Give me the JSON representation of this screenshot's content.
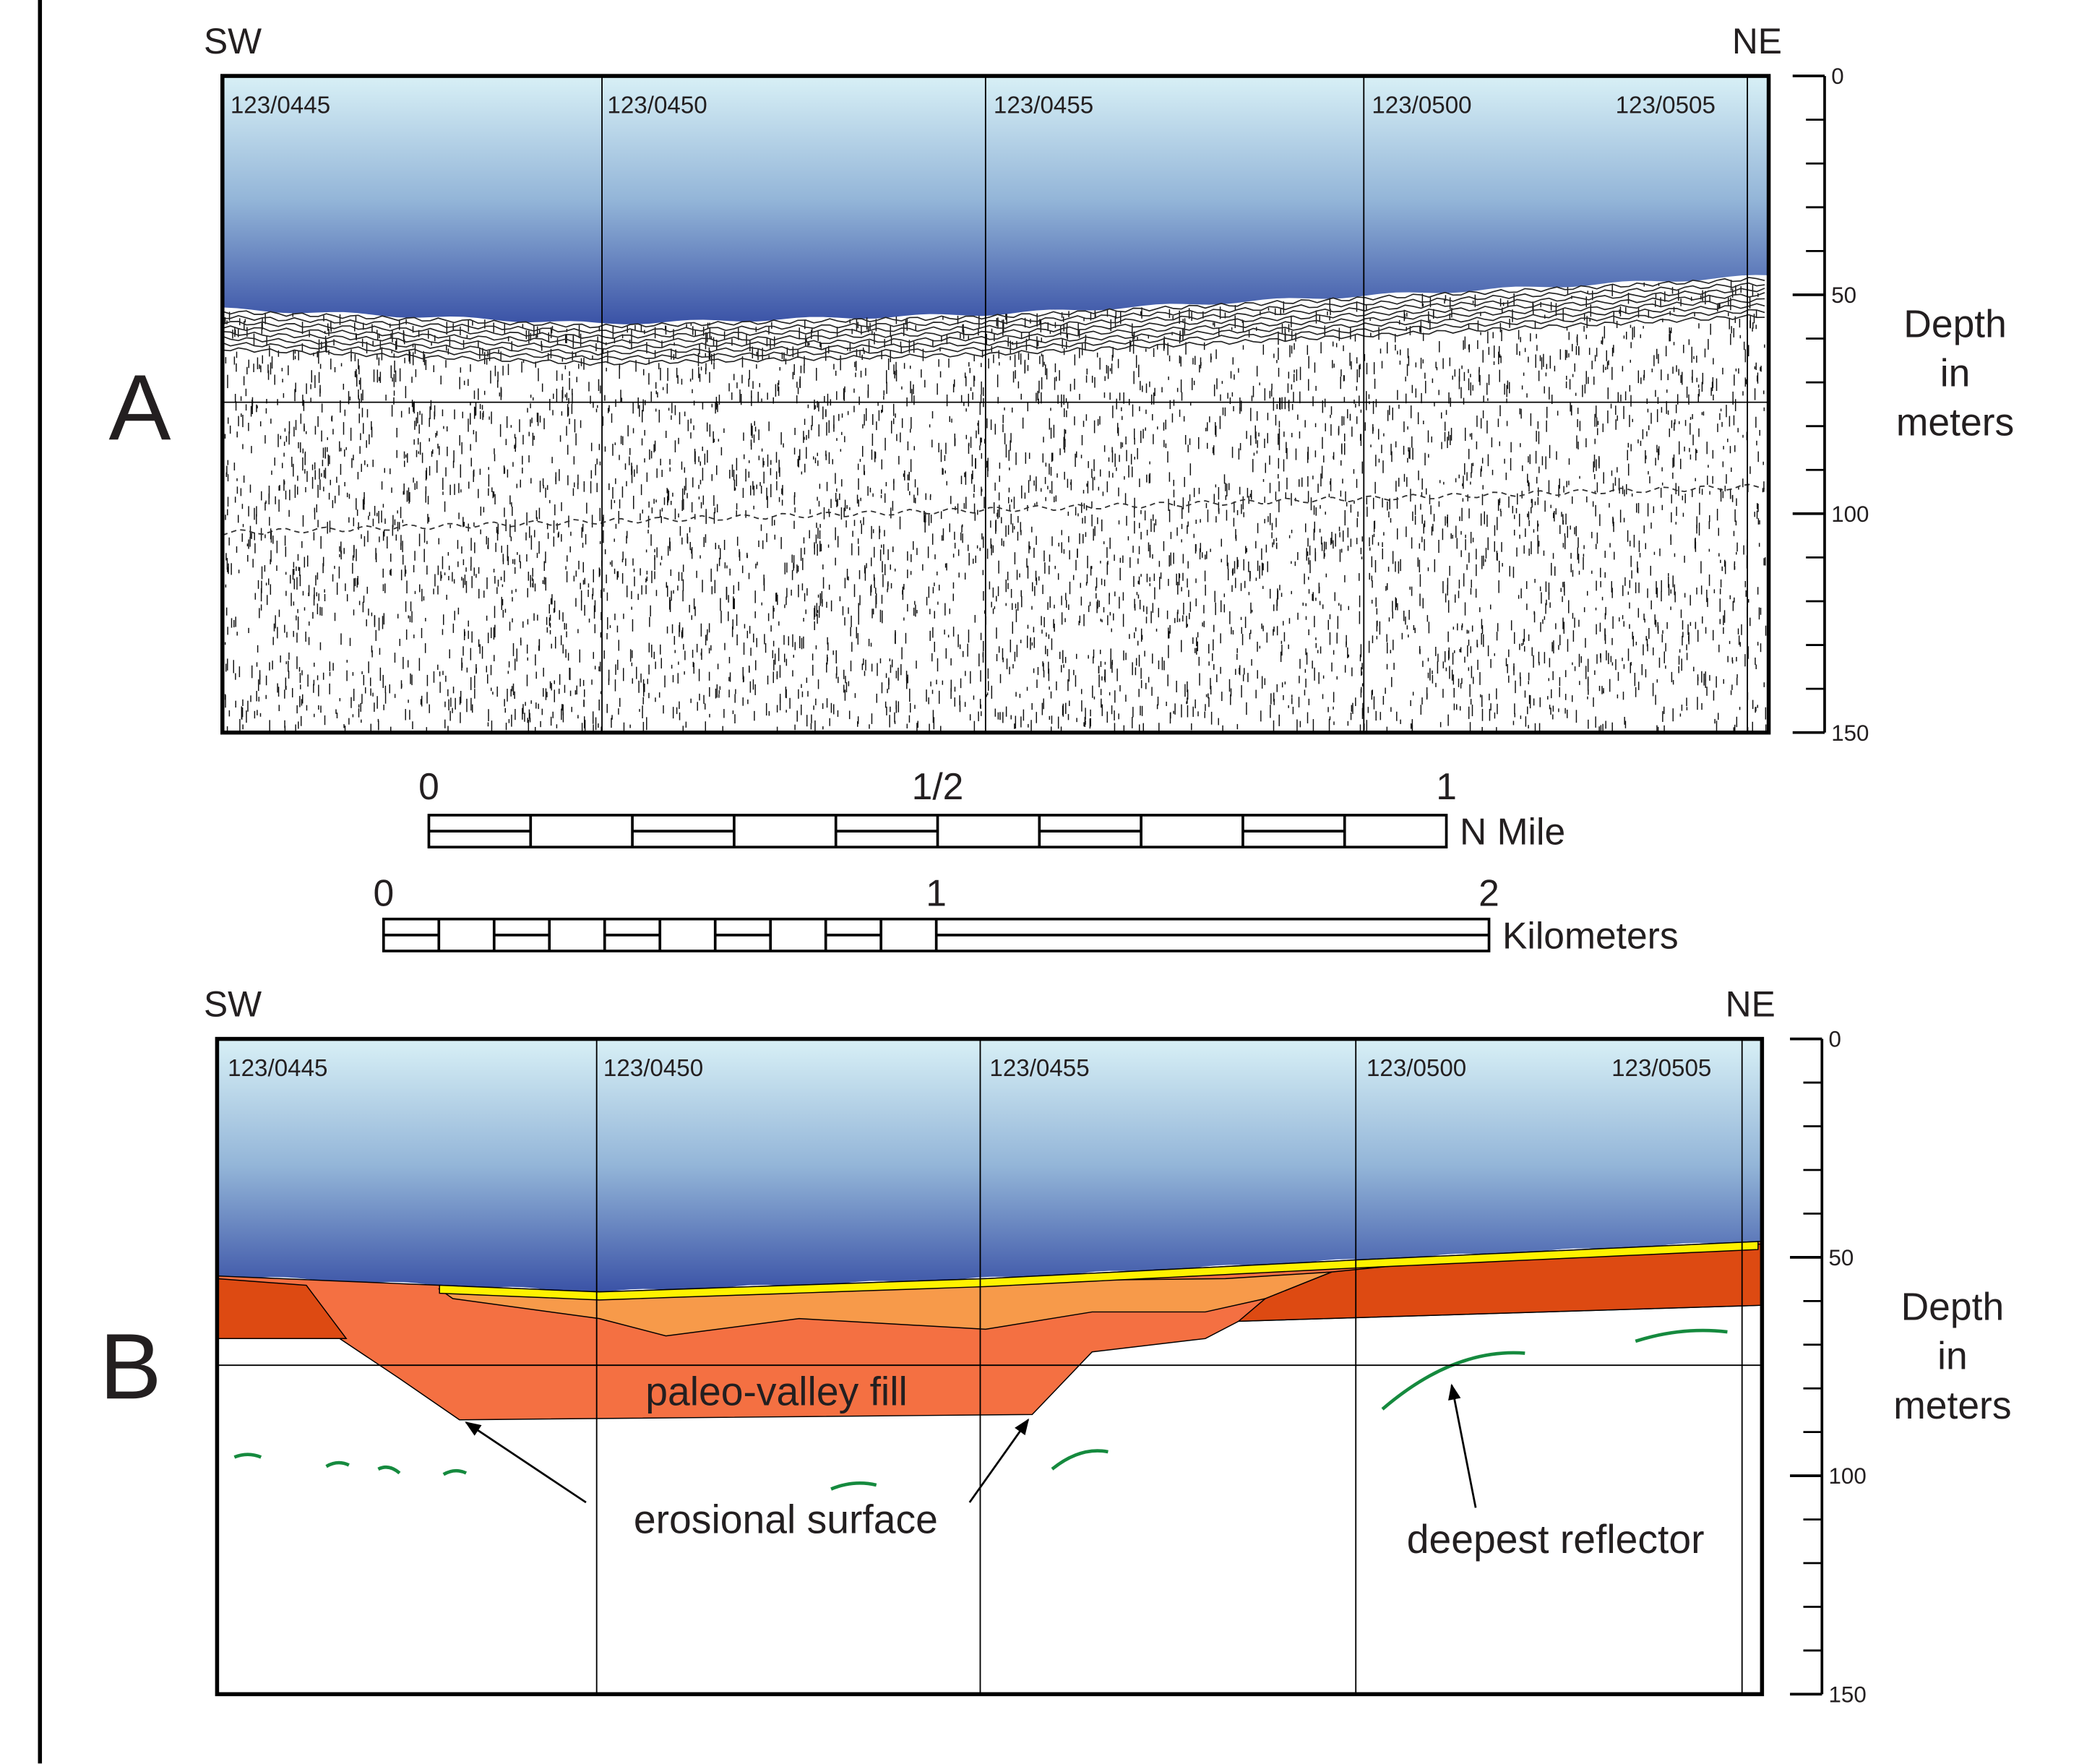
{
  "panels": [
    {
      "label": "A",
      "left": "SW",
      "right": "NE",
      "traces": [
        "123/0445",
        "123/0450",
        "123/0455",
        "123/0500",
        "123/0505"
      ]
    },
    {
      "label": "B",
      "left": "SW",
      "right": "NE",
      "traces": [
        "123/0445",
        "123/0450",
        "123/0455",
        "123/0500",
        "123/0505"
      ],
      "annotations": [
        "paleo-valley fill",
        "erosional surface",
        "deepest reflector"
      ]
    }
  ],
  "depth_axis": {
    "range": [
      0,
      150
    ],
    "ticks": [
      0,
      50,
      100,
      150
    ],
    "title": [
      "Depth",
      "in",
      "meters"
    ]
  },
  "scale_bars": [
    {
      "labels": [
        "0",
        "1/2",
        "1"
      ],
      "unit": "N Mile"
    },
    {
      "labels": [
        "0",
        "1",
        "2"
      ],
      "unit": "Kilometers"
    }
  ]
}
